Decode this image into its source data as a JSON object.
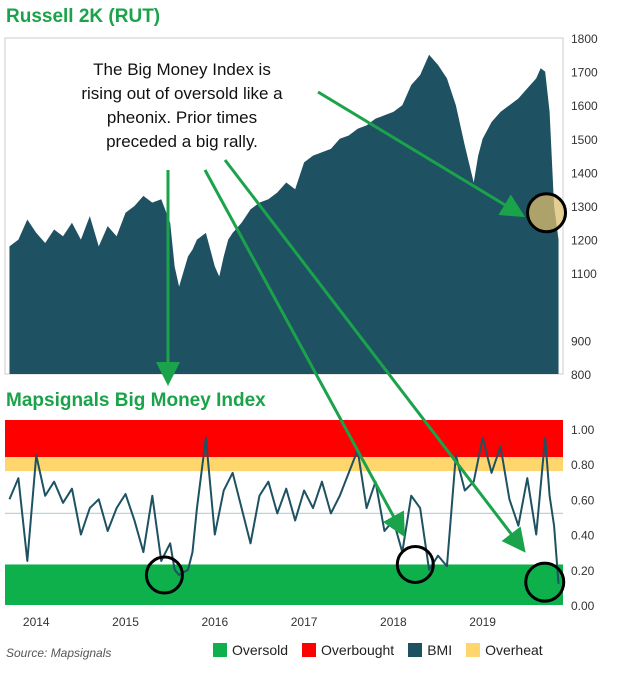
{
  "chart_data": [
    {
      "type": "area",
      "title": "Russell 2K (RUT)",
      "ylim": [
        800,
        1800
      ],
      "yticks": [
        800,
        900,
        1100,
        1200,
        1300,
        1400,
        1500,
        1600,
        1700,
        1800
      ],
      "color": "#1e5262",
      "series": [
        {
          "x": [
            2013.7,
            2013.8,
            2013.9,
            2014.0,
            2014.1,
            2014.2,
            2014.3,
            2014.4,
            2014.5,
            2014.6,
            2014.7,
            2014.8,
            2014.9,
            2015.0,
            2015.1,
            2015.2,
            2015.3,
            2015.4,
            2015.5,
            2015.55,
            2015.6,
            2015.7,
            2015.75,
            2015.8,
            2015.9,
            2016.0,
            2016.05,
            2016.1,
            2016.15,
            2016.2,
            2016.3,
            2016.4,
            2016.5,
            2016.6,
            2016.7,
            2016.8,
            2016.9,
            2017.0,
            2017.1,
            2017.2,
            2017.3,
            2017.4,
            2017.5,
            2017.6,
            2017.7,
            2017.8,
            2017.9,
            2018.0,
            2018.1,
            2018.2,
            2018.3,
            2018.4,
            2018.5,
            2018.6,
            2018.7,
            2018.8,
            2018.9,
            2018.95,
            2019.0,
            2019.1,
            2019.2,
            2019.3,
            2019.4,
            2019.5,
            2019.6,
            2019.65,
            2019.7,
            2019.75,
            2019.8,
            2019.85
          ],
          "values": [
            1180,
            1200,
            1260,
            1220,
            1190,
            1230,
            1210,
            1250,
            1200,
            1270,
            1180,
            1240,
            1210,
            1280,
            1300,
            1330,
            1310,
            1320,
            1250,
            1120,
            1060,
            1150,
            1170,
            1200,
            1220,
            1120,
            1090,
            1150,
            1200,
            1220,
            1250,
            1290,
            1310,
            1320,
            1340,
            1370,
            1350,
            1430,
            1450,
            1460,
            1470,
            1500,
            1510,
            1530,
            1540,
            1560,
            1570,
            1580,
            1600,
            1660,
            1690,
            1750,
            1720,
            1680,
            1600,
            1480,
            1370,
            1450,
            1500,
            1550,
            1580,
            1600,
            1620,
            1650,
            1680,
            1710,
            1700,
            1580,
            1300,
            1200
          ]
        }
      ],
      "annotation": "The Big Money Index is rising out of oversold like a pheonix. Prior times preceded a big rally."
    },
    {
      "type": "line",
      "title": "Mapsignals Big Money Index",
      "ylim": [
        0.0,
        1.05
      ],
      "yticks": [
        "0.00",
        "0.20",
        "0.40",
        "0.60",
        "0.80",
        "1.00"
      ],
      "xticks": [
        "2014",
        "2015",
        "2016",
        "2017",
        "2018",
        "2019"
      ],
      "bands": [
        {
          "name": "Oversold",
          "from": 0.0,
          "to": 0.23,
          "color": "#0eb04b"
        },
        {
          "name": "Overheat",
          "from": 0.76,
          "to": 0.84,
          "color": "#ffd56e"
        },
        {
          "name": "Overbought",
          "from": 0.84,
          "to": 1.05,
          "color": "#ff0000"
        }
      ],
      "midline": 0.52,
      "series": [
        {
          "name": "BMI",
          "color": "#1e5262",
          "x": [
            2013.7,
            2013.8,
            2013.9,
            2014.0,
            2014.1,
            2014.2,
            2014.3,
            2014.4,
            2014.5,
            2014.6,
            2014.7,
            2014.8,
            2014.9,
            2015.0,
            2015.1,
            2015.2,
            2015.3,
            2015.4,
            2015.5,
            2015.55,
            2015.6,
            2015.7,
            2015.75,
            2015.8,
            2015.9,
            2016.0,
            2016.1,
            2016.2,
            2016.3,
            2016.4,
            2016.5,
            2016.6,
            2016.7,
            2016.8,
            2016.9,
            2017.0,
            2017.1,
            2017.2,
            2017.3,
            2017.4,
            2017.5,
            2017.6,
            2017.7,
            2017.8,
            2017.9,
            2018.0,
            2018.1,
            2018.2,
            2018.3,
            2018.4,
            2018.5,
            2018.6,
            2018.7,
            2018.8,
            2018.9,
            2019.0,
            2019.1,
            2019.2,
            2019.3,
            2019.4,
            2019.5,
            2019.6,
            2019.7,
            2019.75,
            2019.8,
            2019.85
          ],
          "values": [
            0.6,
            0.72,
            0.25,
            0.85,
            0.62,
            0.7,
            0.58,
            0.66,
            0.4,
            0.55,
            0.6,
            0.42,
            0.55,
            0.63,
            0.48,
            0.3,
            0.62,
            0.25,
            0.35,
            0.2,
            0.17,
            0.2,
            0.3,
            0.55,
            0.95,
            0.4,
            0.65,
            0.75,
            0.55,
            0.35,
            0.62,
            0.7,
            0.52,
            0.66,
            0.48,
            0.65,
            0.55,
            0.7,
            0.52,
            0.62,
            0.75,
            0.88,
            0.55,
            0.7,
            0.42,
            0.48,
            0.3,
            0.62,
            0.55,
            0.2,
            0.28,
            0.22,
            0.85,
            0.65,
            0.7,
            0.95,
            0.75,
            0.9,
            0.6,
            0.45,
            0.72,
            0.4,
            0.95,
            0.62,
            0.45,
            0.12
          ]
        }
      ]
    }
  ],
  "footer": {
    "source": "Source: Mapsignals",
    "legend": [
      {
        "label": "Oversold",
        "color": "#0eb04b"
      },
      {
        "label": "Overbought",
        "color": "#ff0000"
      },
      {
        "label": "BMI",
        "color": "#1e5262"
      },
      {
        "label": "Overheat",
        "color": "#ffd56e"
      }
    ]
  }
}
